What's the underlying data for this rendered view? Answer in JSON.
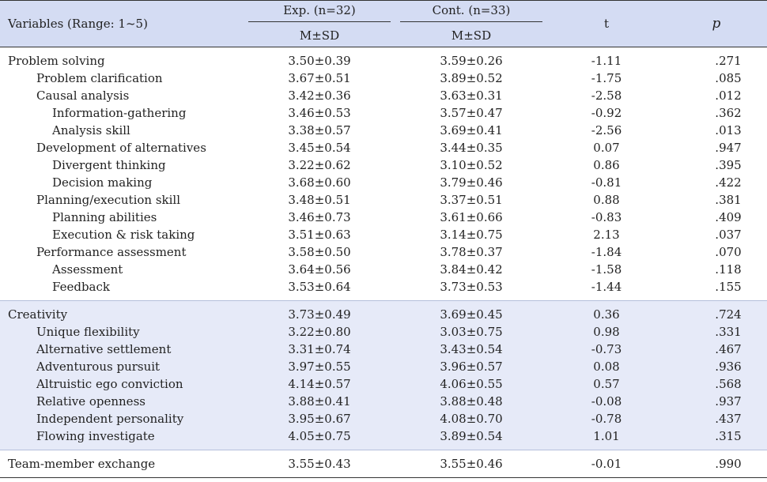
{
  "header": {
    "variables_label": "Variables (Range: 1~5)",
    "exp_label": "Exp. (n=32)",
    "cont_label": "Cont. (n=33)",
    "msd_exp": "M±SD",
    "msd_cont": "M±SD",
    "t_label": "t",
    "p_label": "p"
  },
  "sections": {
    "problem": {
      "rows": [
        {
          "name": "Problem solving",
          "exp": "3.50±0.39",
          "cont": "3.59±0.26",
          "t": "-1.11",
          "p": ".271"
        },
        {
          "name": "Problem clarification",
          "exp": "3.67±0.51",
          "cont": "3.89±0.52",
          "t": "-1.75",
          "p": ".085"
        },
        {
          "name": "Causal analysis",
          "exp": "3.42±0.36",
          "cont": "3.63±0.31",
          "t": "-2.58",
          "p": ".012"
        },
        {
          "name": "Information-gathering",
          "exp": "3.46±0.53",
          "cont": "3.57±0.47",
          "t": "-0.92",
          "p": ".362"
        },
        {
          "name": "Analysis skill",
          "exp": "3.38±0.57",
          "cont": "3.69±0.41",
          "t": "-2.56",
          "p": ".013"
        },
        {
          "name": "Development of alternatives",
          "exp": "3.45±0.54",
          "cont": "3.44±0.35",
          "t": "0.07",
          "p": ".947"
        },
        {
          "name": "Divergent thinking",
          "exp": "3.22±0.62",
          "cont": "3.10±0.52",
          "t": "0.86",
          "p": ".395"
        },
        {
          "name": "Decision making",
          "exp": "3.68±0.60",
          "cont": "3.79±0.46",
          "t": "-0.81",
          "p": ".422"
        },
        {
          "name": "Planning/execution skill",
          "exp": "3.48±0.51",
          "cont": "3.37±0.51",
          "t": "0.88",
          "p": ".381"
        },
        {
          "name": "Planning abilities",
          "exp": "3.46±0.73",
          "cont": "3.61±0.66",
          "t": "-0.83",
          "p": ".409"
        },
        {
          "name": "Execution & risk taking",
          "exp": "3.51±0.63",
          "cont": "3.14±0.75",
          "t": "2.13",
          "p": ".037"
        },
        {
          "name": "Performance assessment",
          "exp": "3.58±0.50",
          "cont": "3.78±0.37",
          "t": "-1.84",
          "p": ".070"
        },
        {
          "name": "Assessment",
          "exp": "3.64±0.56",
          "cont": "3.84±0.42",
          "t": "-1.58",
          "p": ".118"
        },
        {
          "name": "Feedback",
          "exp": "3.53±0.64",
          "cont": "3.73±0.53",
          "t": "-1.44",
          "p": ".155"
        }
      ]
    },
    "creativity": {
      "rows": [
        {
          "name": "Creativity",
          "exp": "3.73±0.49",
          "cont": "3.69±0.45",
          "t": "0.36",
          "p": ".724"
        },
        {
          "name": "Unique flexibility",
          "exp": "3.22±0.80",
          "cont": "3.03±0.75",
          "t": "0.98",
          "p": ".331"
        },
        {
          "name": "Alternative settlement",
          "exp": "3.31±0.74",
          "cont": "3.43±0.54",
          "t": "-0.73",
          "p": ".467"
        },
        {
          "name": "Adventurous pursuit",
          "exp": "3.97±0.55",
          "cont": "3.96±0.57",
          "t": "0.08",
          "p": ".936"
        },
        {
          "name": "Altruistic ego conviction",
          "exp": "4.14±0.57",
          "cont": "4.06±0.55",
          "t": "0.57",
          "p": ".568"
        },
        {
          "name": "Relative openness",
          "exp": "3.88±0.41",
          "cont": "3.88±0.48",
          "t": "-0.08",
          "p": ".937"
        },
        {
          "name": "Independent personality",
          "exp": "3.95±0.67",
          "cont": "4.08±0.70",
          "t": "-0.78",
          "p": ".437"
        },
        {
          "name": "Flowing investigate",
          "exp": "4.05±0.75",
          "cont": "3.89±0.54",
          "t": "1.01",
          "p": ".315"
        }
      ]
    },
    "team": {
      "rows": [
        {
          "name": "Team-member exchange",
          "exp": "3.55±0.43",
          "cont": "3.55±0.46",
          "t": "-0.01",
          "p": ".990"
        }
      ]
    }
  },
  "colors": {
    "header_bg": "#d4dcf3",
    "creativity_bg": "#e6eaf8"
  }
}
